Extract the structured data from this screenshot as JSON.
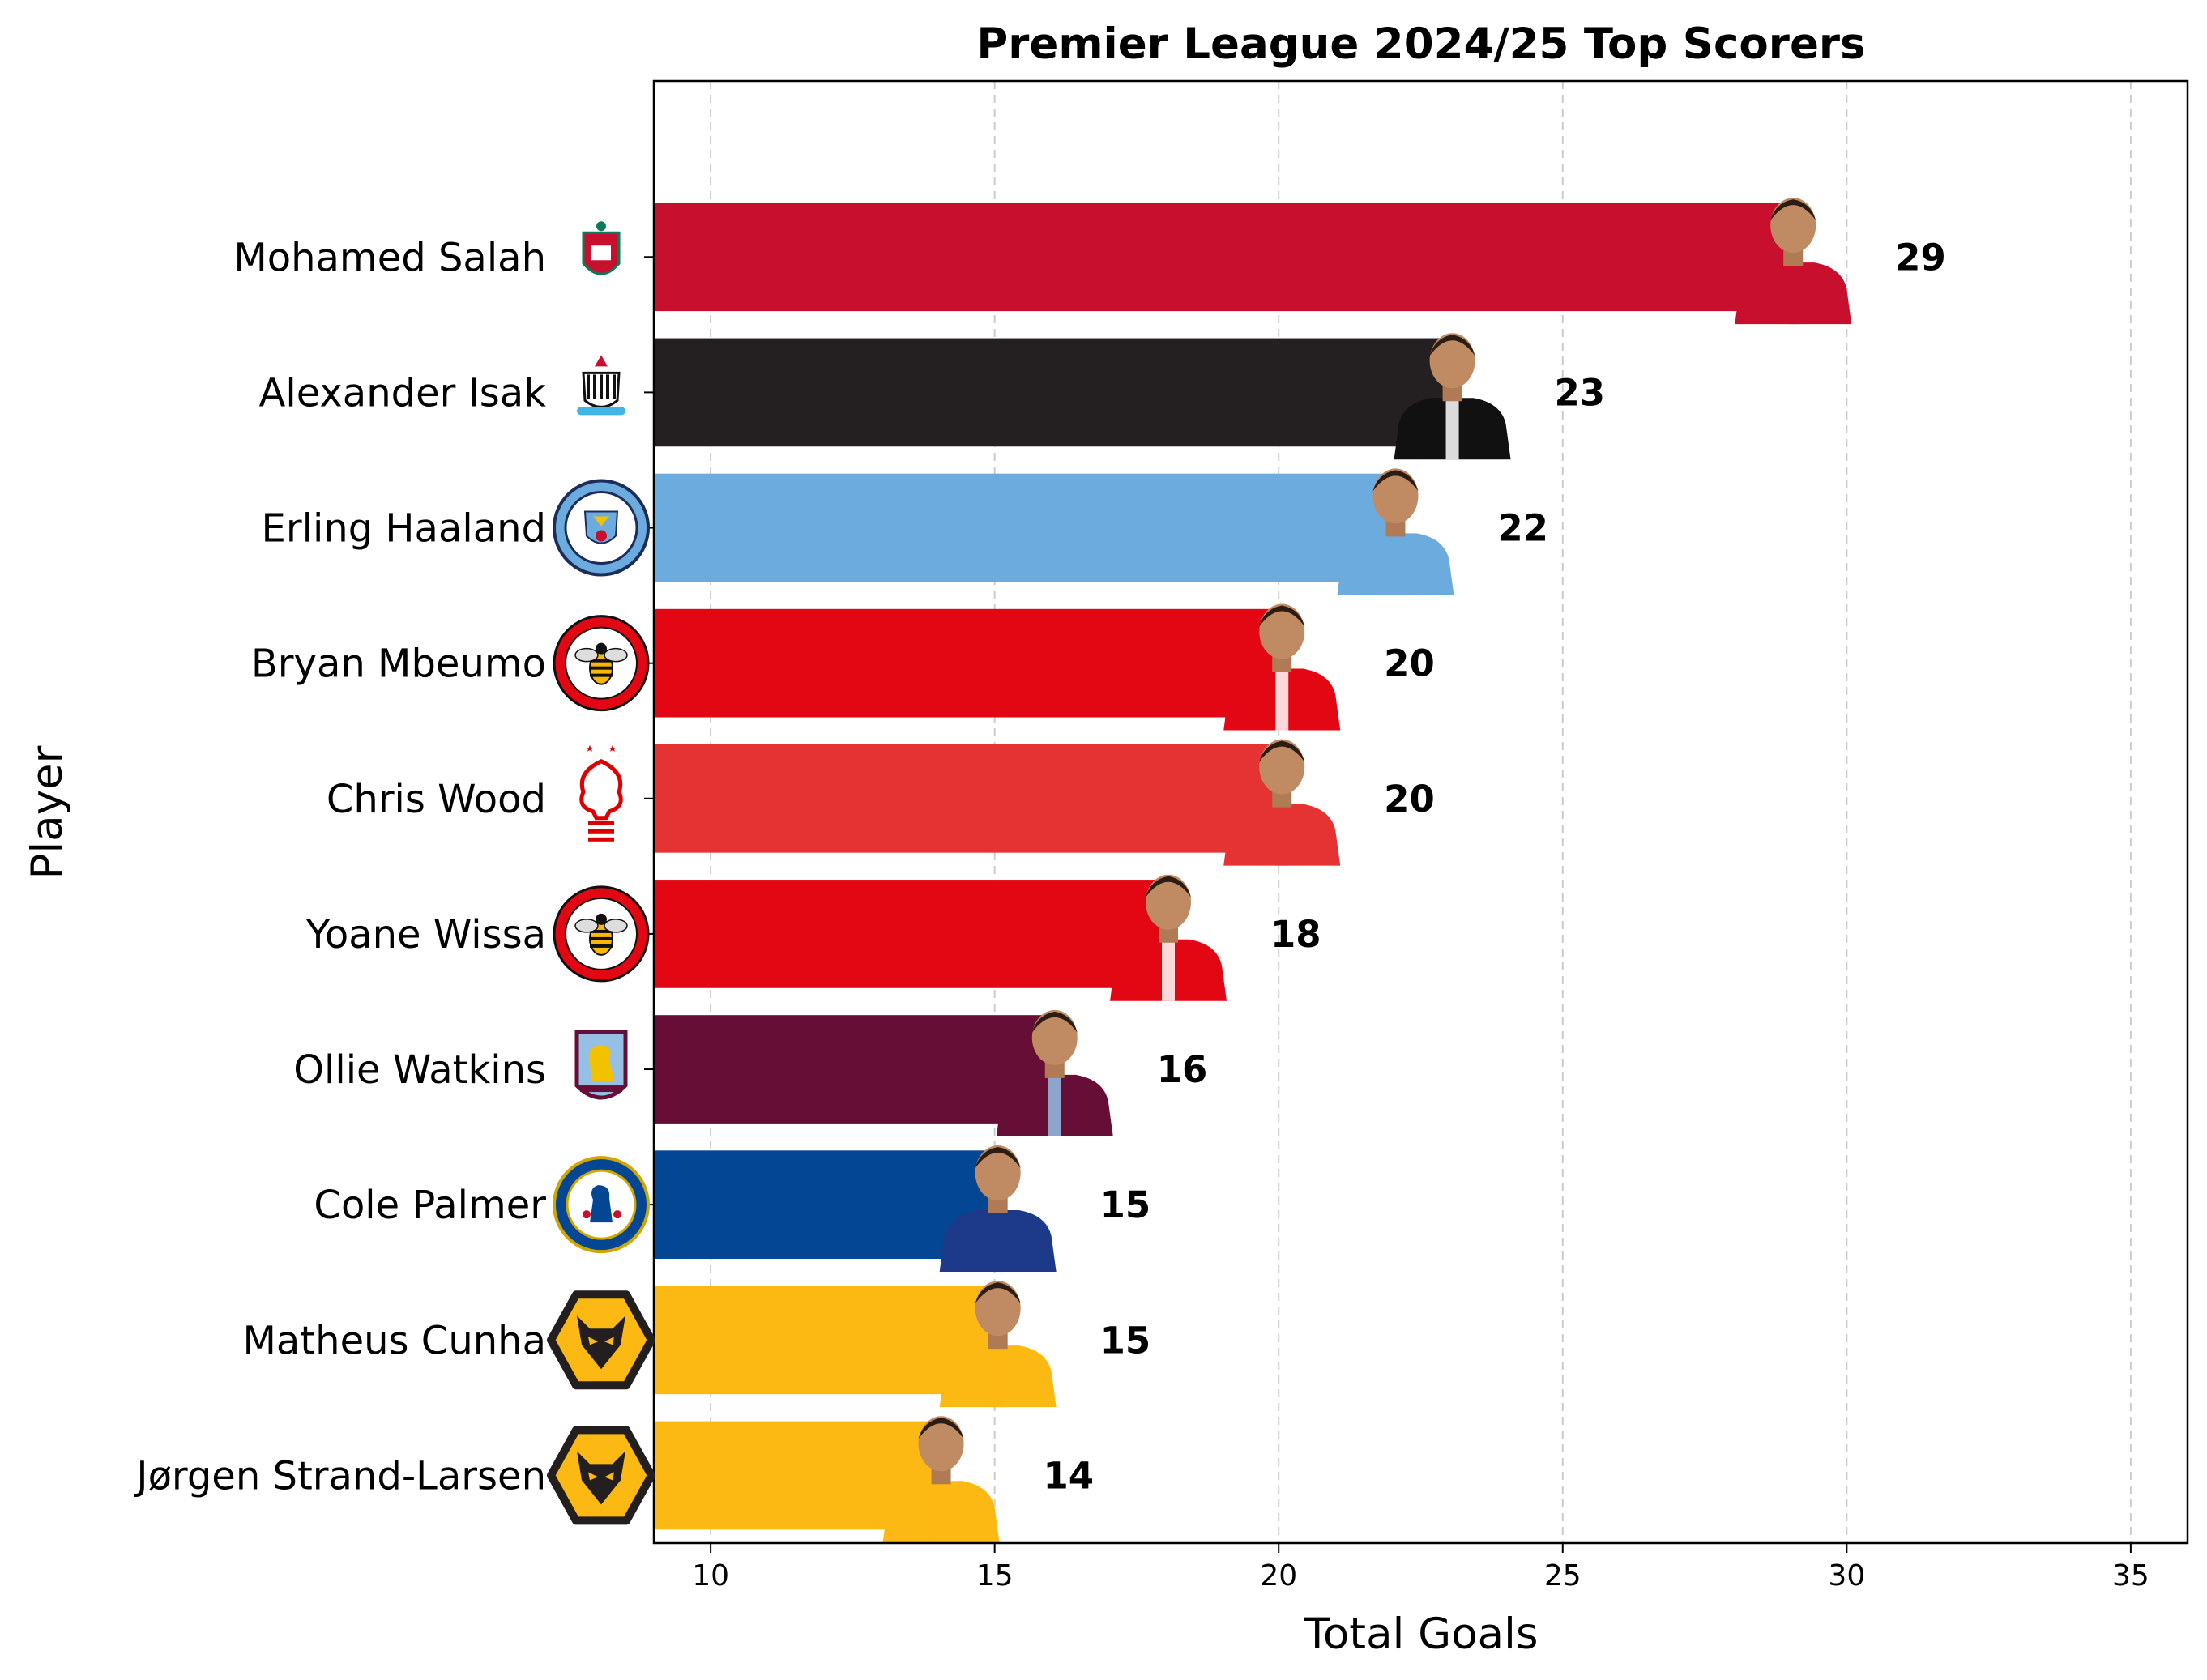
{
  "chart_data": {
    "type": "bar",
    "orientation": "horizontal",
    "title": "Premier League 2024/25 Top Scorers",
    "xlabel": "Total Goals",
    "ylabel": "Player",
    "xlim": [
      9,
      36
    ],
    "xticks": [
      10,
      15,
      20,
      25,
      30,
      35
    ],
    "grid": "x-dashed",
    "categories": [
      "Mohamed Salah",
      "Alexander Isak",
      "Erling Haaland",
      "Bryan Mbeumo",
      "Chris Wood",
      "Yoane Wissa",
      "Ollie Watkins",
      "Cole Palmer",
      "Matheus Cunha",
      "Jørgen Strand-Larsen"
    ],
    "values": [
      29,
      23,
      22,
      20,
      20,
      18,
      16,
      15,
      15,
      14
    ],
    "bar_colors": [
      "#C8102E",
      "#241F20",
      "#6CABDD",
      "#E30613",
      "#E53233",
      "#E30613",
      "#670E36",
      "#034694",
      "#FDB913",
      "#FDB913"
    ],
    "club_icons": [
      "liverpool-crest-icon",
      "newcastle-crest-icon",
      "man-city-crest-icon",
      "brentford-crest-icon",
      "nottingham-forest-crest-icon",
      "brentford-crest-icon",
      "aston-villa-crest-icon",
      "chelsea-crest-icon",
      "wolves-crest-icon",
      "wolves-crest-icon"
    ],
    "kit_colors": [
      [
        "#C8102E",
        "#C8102E"
      ],
      [
        "#111111",
        "#ffffff"
      ],
      [
        "#6CABDD",
        "#6CABDD"
      ],
      [
        "#E30613",
        "#ffffff"
      ],
      [
        "#E53233",
        "#E53233"
      ],
      [
        "#E30613",
        "#ffffff"
      ],
      [
        "#670E36",
        "#95BFE5"
      ],
      [
        "#1d3a8a",
        "#1d3a8a"
      ],
      [
        "#FDB913",
        "#FDB913"
      ],
      [
        "#FDB913",
        "#FDB913"
      ]
    ]
  }
}
